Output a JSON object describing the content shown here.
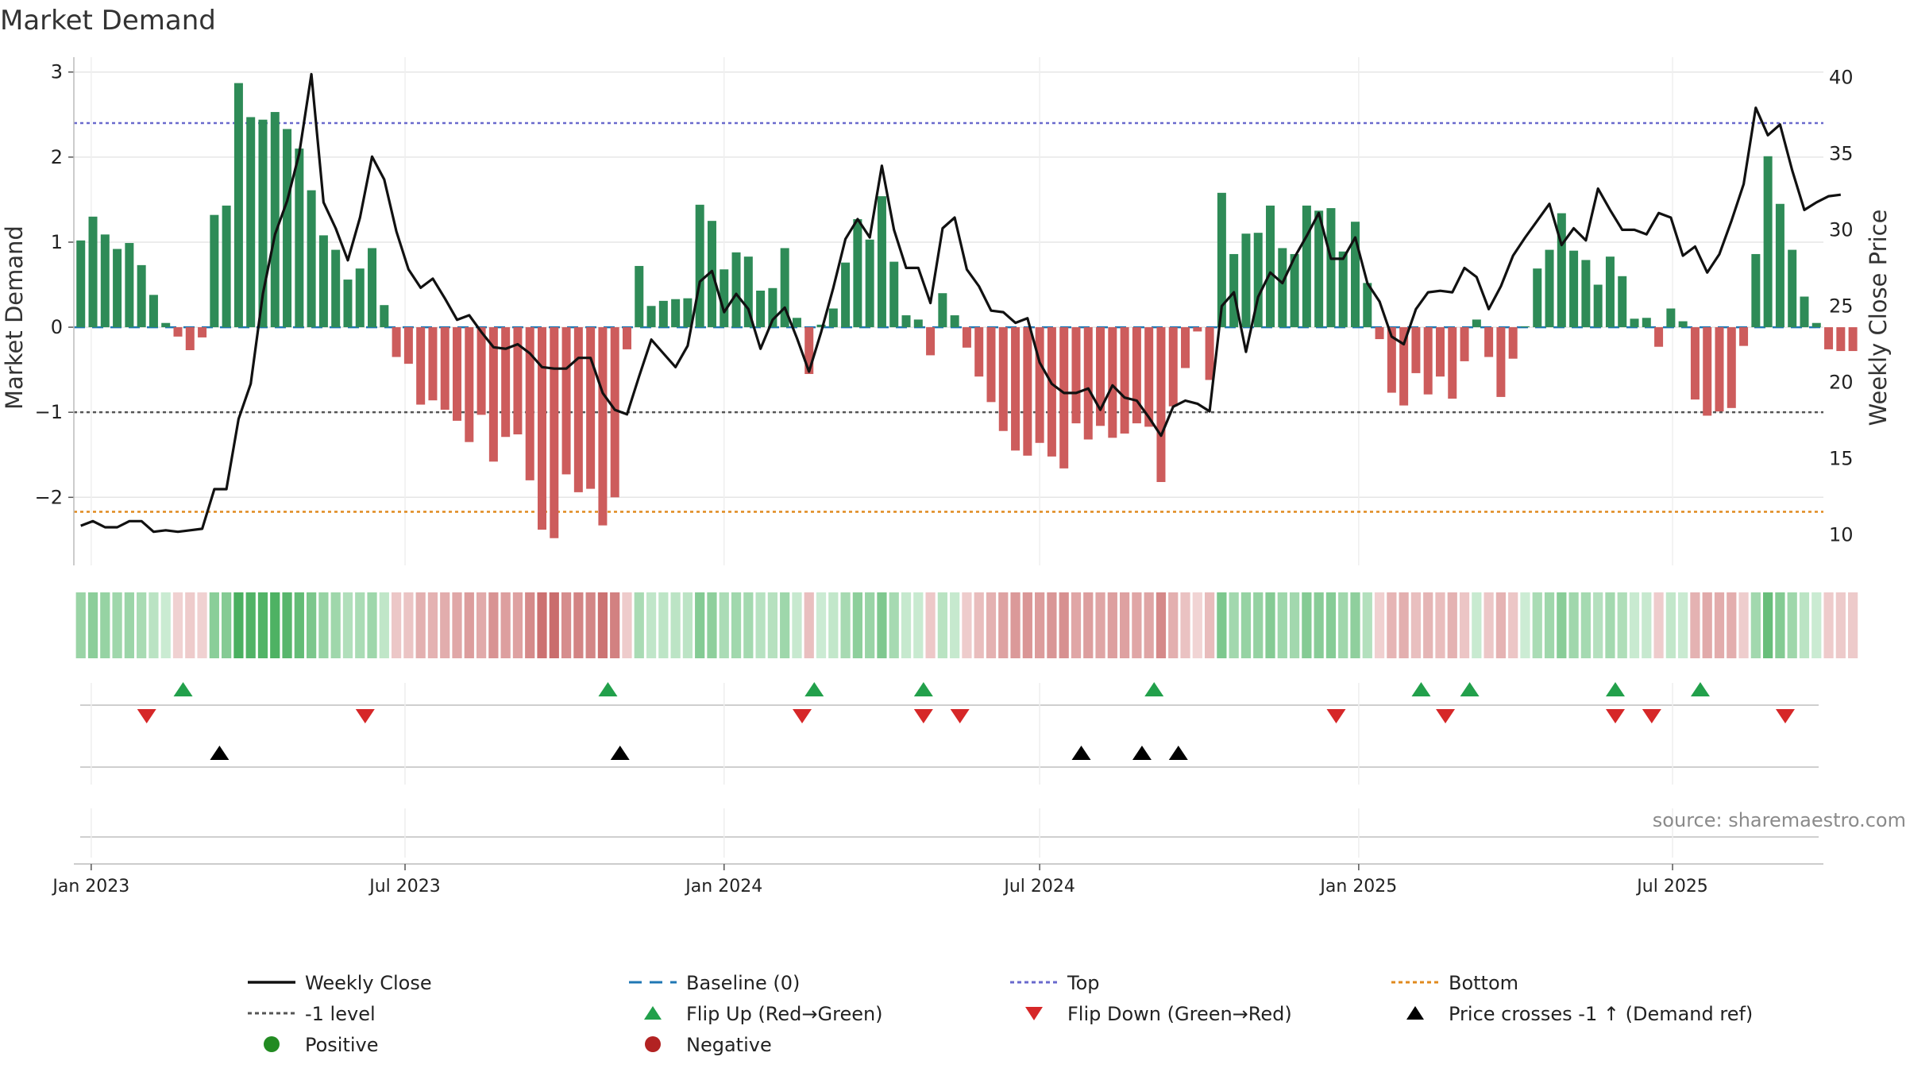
{
  "chart_data": {
    "type": "bar",
    "title": "Market Demand",
    "ylabel": "Market Demand",
    "y2label": "Weekly Close Price",
    "source": "source: sharemaestro.com",
    "ylim": [
      -2.8,
      3.1
    ],
    "y2lim": [
      8.0,
      40.9
    ],
    "yticks": [
      {
        "v": 3,
        "t": "3"
      },
      {
        "v": 2,
        "t": "2"
      },
      {
        "v": 1,
        "t": "1"
      },
      {
        "v": 0,
        "t": "0"
      },
      {
        "v": -1,
        "t": "−1"
      },
      {
        "v": -2,
        "t": "−2"
      }
    ],
    "y2ticks": [
      40,
      35,
      30,
      25,
      20,
      15,
      10
    ],
    "date_range": [
      "2022-12-22",
      "2025-09-26"
    ],
    "xticks": [
      {
        "date": "2023-01-01",
        "label": "Jan 2023"
      },
      {
        "date": "2023-07-01",
        "label": "Jul 2023"
      },
      {
        "date": "2024-01-01",
        "label": "Jan 2024"
      },
      {
        "date": "2024-07-01",
        "label": "Jul 2024"
      },
      {
        "date": "2025-01-01",
        "label": "Jan 2025"
      },
      {
        "date": "2025-07-01",
        "label": "Jul 2025"
      }
    ],
    "first_date": "2022-12-26",
    "reference_lines": {
      "baseline": 0,
      "top": 2.4,
      "minus_one": -1,
      "bottom": -2.17
    },
    "colors": {
      "positive": "#2e8b57",
      "negative": "#cd5c5c",
      "close": "#111111",
      "baseline": "#1f77b4",
      "top": "#6a6acd",
      "minus_one": "#555555",
      "bottom": "#e08a1e",
      "flip_up": "#22a04b",
      "flip_down": "#d62728",
      "cross": "#000000",
      "positive_dot": "#228b22",
      "negative_dot": "#b22222"
    },
    "demand": [
      1.02,
      1.3,
      1.09,
      0.92,
      0.99,
      0.73,
      0.38,
      0.05,
      -0.11,
      -0.27,
      -0.12,
      1.32,
      1.43,
      2.87,
      2.47,
      2.44,
      2.53,
      2.33,
      2.1,
      1.61,
      1.08,
      0.91,
      0.56,
      0.69,
      0.93,
      0.26,
      -0.35,
      -0.43,
      -0.91,
      -0.86,
      -0.97,
      -1.1,
      -1.35,
      -1.03,
      -1.58,
      -1.29,
      -1.26,
      -1.8,
      -2.38,
      -2.48,
      -1.73,
      -1.94,
      -1.9,
      -2.33,
      -2.0,
      -0.26,
      0.72,
      0.25,
      0.31,
      0.33,
      0.34,
      1.44,
      1.25,
      0.68,
      0.88,
      0.83,
      0.43,
      0.46,
      0.93,
      0.11,
      -0.55,
      0.03,
      0.22,
      0.76,
      1.27,
      1.03,
      1.54,
      0.77,
      0.14,
      0.09,
      -0.33,
      0.4,
      0.14,
      -0.24,
      -0.58,
      -0.88,
      -1.22,
      -1.45,
      -1.51,
      -1.36,
      -1.52,
      -1.66,
      -1.13,
      -1.32,
      -1.16,
      -1.3,
      -1.25,
      -1.13,
      -1.17,
      -1.82,
      -0.93,
      -0.48,
      -0.05,
      -0.62,
      1.58,
      0.86,
      1.1,
      1.11,
      1.43,
      0.93,
      0.86,
      1.43,
      1.37,
      1.4,
      0.89,
      1.24,
      0.52,
      -0.14,
      -0.77,
      -0.92,
      -0.54,
      -0.79,
      -0.58,
      -0.84,
      -0.4,
      0.09,
      -0.35,
      -0.82,
      -0.37,
      0.01,
      0.69,
      0.91,
      1.34,
      0.9,
      0.79,
      0.5,
      0.83,
      0.6,
      0.1,
      0.11,
      -0.23,
      0.22,
      0.07,
      -0.85,
      -1.04,
      -0.99,
      -0.95,
      -0.22,
      0.86,
      2.01,
      1.45,
      0.91,
      0.36,
      0.05,
      -0.26,
      -0.28,
      -0.28
    ],
    "close": [
      10.6,
      10.9,
      10.5,
      10.5,
      10.9,
      10.9,
      10.2,
      10.3,
      10.2,
      10.3,
      10.4,
      13.0,
      13.0,
      17.6,
      19.9,
      25.8,
      29.7,
      31.9,
      35.0,
      40.2,
      31.8,
      30.1,
      28.0,
      30.8,
      34.8,
      33.3,
      29.9,
      27.4,
      26.2,
      26.8,
      25.5,
      24.1,
      24.4,
      23.3,
      22.3,
      22.2,
      22.5,
      21.9,
      21.0,
      20.9,
      20.9,
      21.6,
      21.6,
      19.3,
      18.2,
      17.9,
      20.4,
      22.8,
      21.9,
      21.0,
      22.4,
      26.6,
      27.3,
      24.6,
      25.8,
      24.8,
      22.2,
      24.1,
      24.9,
      22.9,
      20.7,
      23.3,
      26.2,
      29.4,
      30.7,
      29.5,
      34.2,
      30.0,
      27.5,
      27.5,
      25.2,
      30.1,
      30.8,
      27.4,
      26.3,
      24.7,
      24.6,
      23.9,
      24.2,
      21.3,
      19.9,
      19.3,
      19.3,
      19.6,
      18.2,
      19.8,
      19.0,
      18.8,
      17.7,
      16.5,
      18.4,
      18.8,
      18.6,
      18.1,
      25.0,
      25.9,
      22.0,
      25.6,
      27.2,
      26.5,
      28.2,
      29.6,
      31.1,
      28.1,
      28.1,
      29.5,
      26.5,
      25.3,
      23.0,
      22.5,
      24.8,
      25.9,
      26.0,
      25.9,
      27.5,
      26.9,
      24.8,
      26.3,
      28.3,
      29.5,
      30.6,
      31.7,
      29.0,
      30.1,
      29.3,
      32.7,
      31.3,
      30.0,
      30.0,
      29.7,
      31.1,
      30.8,
      28.3,
      28.9,
      27.2,
      28.4,
      30.6,
      33.0,
      38.0,
      36.2,
      36.9,
      33.9,
      31.3,
      31.8,
      32.2,
      32.3
    ],
    "flip_up": [
      "2023-02-23",
      "2023-10-26",
      "2024-02-22",
      "2024-04-25",
      "2024-09-05",
      "2025-02-06",
      "2025-03-06",
      "2025-05-29",
      "2025-07-17"
    ],
    "flip_down": [
      "2023-02-02",
      "2023-06-08",
      "2024-02-15",
      "2024-04-25",
      "2024-05-16",
      "2024-12-19",
      "2025-02-20",
      "2025-05-29",
      "2025-06-19",
      "2025-09-04"
    ],
    "price_cross": [
      "2023-03-16",
      "2023-11-02",
      "2024-07-25",
      "2024-08-29",
      "2024-09-19"
    ],
    "legend": [
      {
        "symbol": "line-solid",
        "label": "Weekly Close",
        "color": "#111111"
      },
      {
        "symbol": "line-dash",
        "label": "Baseline (0)",
        "color": "#1f77b4"
      },
      {
        "symbol": "line-dot",
        "label": "Top",
        "color": "#6a6acd"
      },
      {
        "symbol": "line-dot",
        "label": "Bottom",
        "color": "#e08a1e"
      },
      {
        "symbol": "line-dot",
        "label": "-1 level",
        "color": "#555555"
      },
      {
        "symbol": "tri-up",
        "label": "Flip Up (Red→Green)",
        "color": "#22a04b"
      },
      {
        "symbol": "tri-down",
        "label": "Flip Down (Green→Red)",
        "color": "#d62728"
      },
      {
        "symbol": "tri-up",
        "label": "Price crosses -1 ↑ (Demand ref)",
        "color": "#000000"
      },
      {
        "symbol": "dot",
        "label": "Positive",
        "color": "#228b22"
      },
      {
        "symbol": "dot",
        "label": "Negative",
        "color": "#b22222"
      }
    ]
  }
}
